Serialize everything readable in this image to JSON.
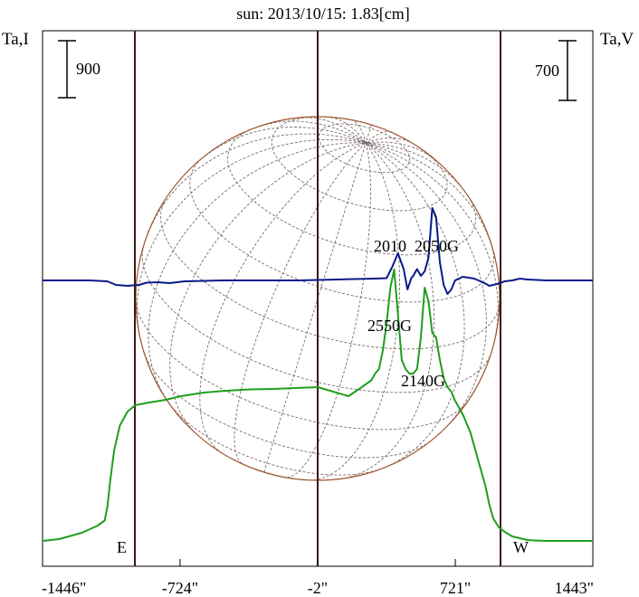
{
  "chart_data": {
    "type": "line",
    "title": "sun: 2013/10/15: 1.83[cm]",
    "left_axis_label": "Ta,I",
    "right_axis_label": "Ta,V",
    "scale_bars": {
      "left": "900",
      "right": "700"
    },
    "x_ticks": [
      "-1446\"",
      "-724\"",
      "-2\"",
      "721\"",
      "1443\""
    ],
    "x_tick_values": [
      -1446,
      -724,
      -2,
      721,
      1443
    ],
    "xlim": [
      -1446,
      1443
    ],
    "limb_markers": {
      "east": "E",
      "west": "W"
    },
    "annotations": [
      "2010",
      "2050G",
      "2550G",
      "2140G"
    ],
    "colors": {
      "stokes_i": "#1f9e1f",
      "stokes_v": "#0a1a8a",
      "disk": "#a0522d",
      "grid": "#7a6a6a",
      "vertical_lines": "#3a1a1a",
      "title": "#1a237e"
    },
    "series": [
      {
        "key": "I",
        "color": "#1f9e1f",
        "x": [
          -1446,
          -1360,
          -1240,
          -1160,
          -1120,
          -1106,
          -1090,
          -1070,
          -1040,
          -1000,
          -960,
          -900,
          -800,
          -720,
          -600,
          -480,
          -360,
          -240,
          -120,
          0,
          80,
          160,
          230,
          280,
          300,
          320,
          340,
          360,
          380,
          400,
          420,
          440,
          460,
          480,
          500,
          520,
          540,
          560,
          580,
          600,
          620,
          640,
          660,
          680,
          700,
          720,
          760,
          800,
          840,
          880,
          900,
          920,
          950,
          980,
          1020,
          1060,
          1080,
          1100,
          1140,
          1200,
          1280,
          1360,
          1443
        ],
        "y": [
          0,
          -0.04,
          -0.18,
          -0.33,
          -0.45,
          -0.75,
          -1.35,
          -2.0,
          -2.55,
          -2.86,
          -3.0,
          -3.05,
          -3.12,
          -3.2,
          -3.28,
          -3.32,
          -3.35,
          -3.36,
          -3.38,
          -3.4,
          -3.3,
          -3.2,
          -3.4,
          -3.55,
          -3.7,
          -3.8,
          -4.2,
          -4.8,
          -5.6,
          -6.0,
          -5.0,
          -4.0,
          -3.8,
          -3.7,
          -3.7,
          -3.8,
          -4.5,
          -5.6,
          -5.3,
          -4.6,
          -4.5,
          -4.0,
          -3.6,
          -3.4,
          -3.3,
          -3.1,
          -2.8,
          -2.4,
          -1.8,
          -1.2,
          -0.8,
          -0.5,
          -0.3,
          -0.2,
          -0.1,
          -0.06,
          -0.04,
          -0.02,
          -0.01,
          0,
          0,
          0,
          0
        ]
      },
      {
        "key": "V",
        "color": "#0a1a8a",
        "x": [
          -1446,
          -1200,
          -1106,
          -1060,
          -1000,
          -940,
          -900,
          -840,
          -780,
          -700,
          -500,
          -300,
          -100,
          100,
          300,
          360,
          390,
          420,
          450,
          470,
          490,
          500,
          520,
          540,
          560,
          580,
          600,
          620,
          640,
          660,
          680,
          700,
          720,
          760,
          820,
          870,
          900,
          940,
          980,
          1020,
          1060,
          1100,
          1200,
          1300,
          1443
        ],
        "y": [
          0,
          0,
          0.02,
          0.1,
          0.12,
          0.1,
          0.05,
          0.04,
          0.06,
          0.02,
          0,
          0,
          0,
          -0.02,
          -0.04,
          -0.05,
          -0.3,
          -0.6,
          -0.25,
          0.2,
          -0.05,
          -0.1,
          -0.25,
          -0.1,
          -0.2,
          -0.5,
          -1.6,
          -1.4,
          -0.4,
          0.1,
          0.3,
          0.2,
          0,
          -0.08,
          -0.04,
          0.05,
          0.12,
          0.08,
          0.02,
          0,
          -0.04,
          -0.02,
          0,
          0,
          0
        ]
      }
    ]
  }
}
